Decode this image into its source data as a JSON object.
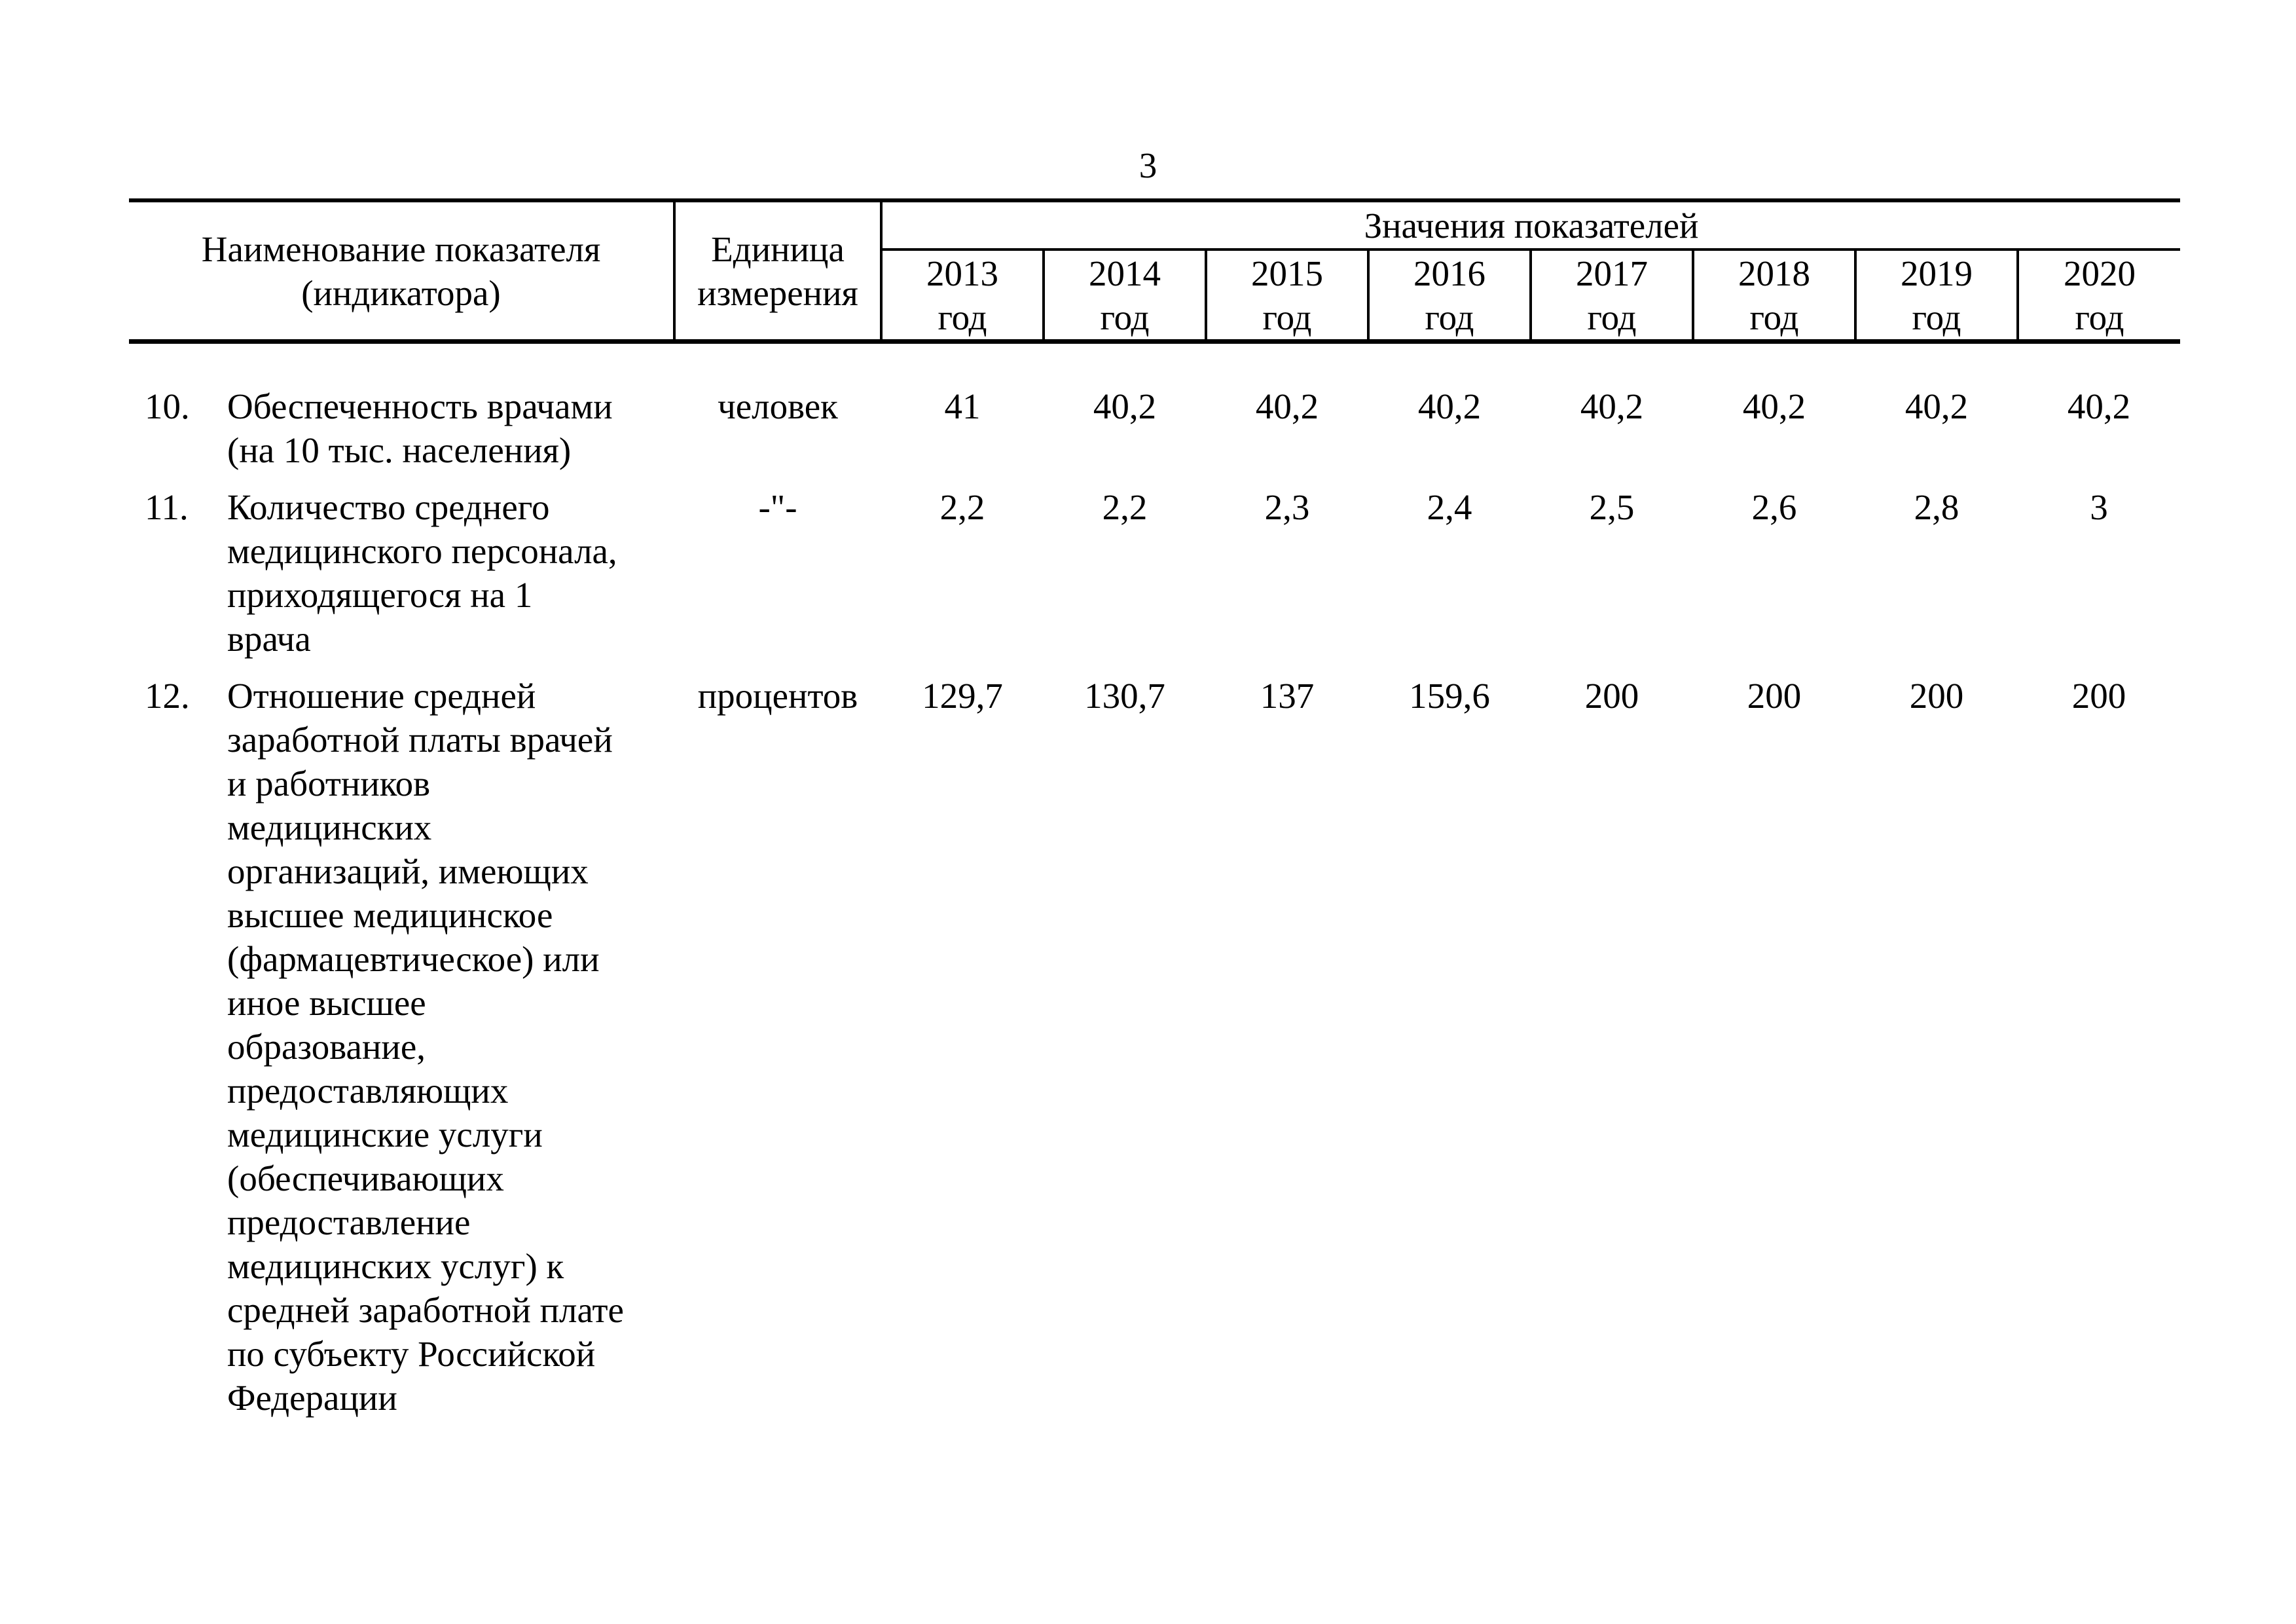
{
  "page": {
    "number": "3"
  },
  "table": {
    "header": {
      "col_indicator": "Наименование показателя\n(индикатора)",
      "col_unit": "Единица\nизмерения",
      "col_values_group": "Значения показателей",
      "years": [
        "2013",
        "2014",
        "2015",
        "2016",
        "2017",
        "2018",
        "2019",
        "2020"
      ],
      "year_word": "год"
    },
    "rows": [
      {
        "num": "10.",
        "name": "Обеспеченность врачами\n(на 10 тыс. населения)",
        "unit": "человек",
        "values": [
          "41",
          "40,2",
          "40,2",
          "40,2",
          "40,2",
          "40,2",
          "40,2",
          "40,2"
        ]
      },
      {
        "num": "11.",
        "name": "Количество среднего\nмедицинского персонала,\nприходящегося на 1\nврача",
        "unit": "-\"-",
        "values": [
          "2,2",
          "2,2",
          "2,3",
          "2,4",
          "2,5",
          "2,6",
          "2,8",
          "3"
        ]
      },
      {
        "num": "12.",
        "name": "Отношение средней\nзаработной платы врачей\nи работников\nмедицинских\nорганизаций, имеющих\nвысшее медицинское\n(фармацевтическое) или\nиное высшее\nобразование,\nпредоставляющих\nмедицинские услуги\n(обеспечивающих\nпредоставление\nмедицинских услуг) к\nсредней заработной плате\nпо субъекту Российской\nФедерации",
        "unit": "процентов",
        "values": [
          "129,7",
          "130,7",
          "137",
          "159,6",
          "200",
          "200",
          "200",
          "200"
        ]
      }
    ]
  }
}
